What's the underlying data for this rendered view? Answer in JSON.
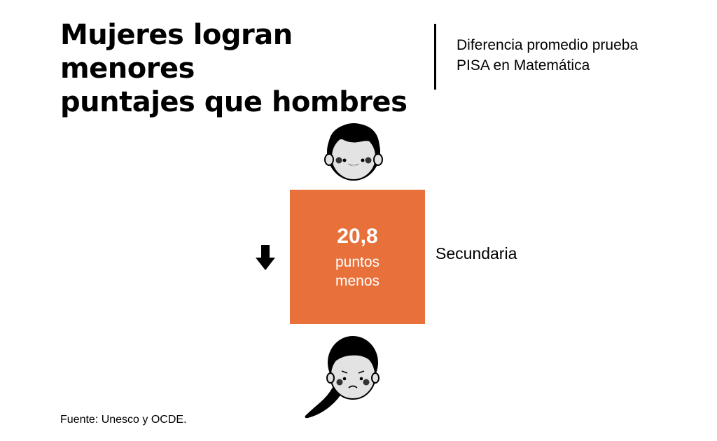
{
  "title": {
    "line1": "Mujeres logran menores",
    "line2": "puntajes que hombres"
  },
  "subtitle": {
    "line1": "Diferencia promedio prueba",
    "line2": "PISA en Matemática"
  },
  "stat": {
    "value": "20,8",
    "unit_line1": "puntos",
    "unit_line2": "menos",
    "level": "Secundaria",
    "box_color": "#e8703a",
    "indicator_icon": "arrow-down-icon"
  },
  "icons": {
    "top": "boy-face-icon",
    "bottom": "girl-face-icon"
  },
  "source": "Fuente: Unesco  y OCDE."
}
